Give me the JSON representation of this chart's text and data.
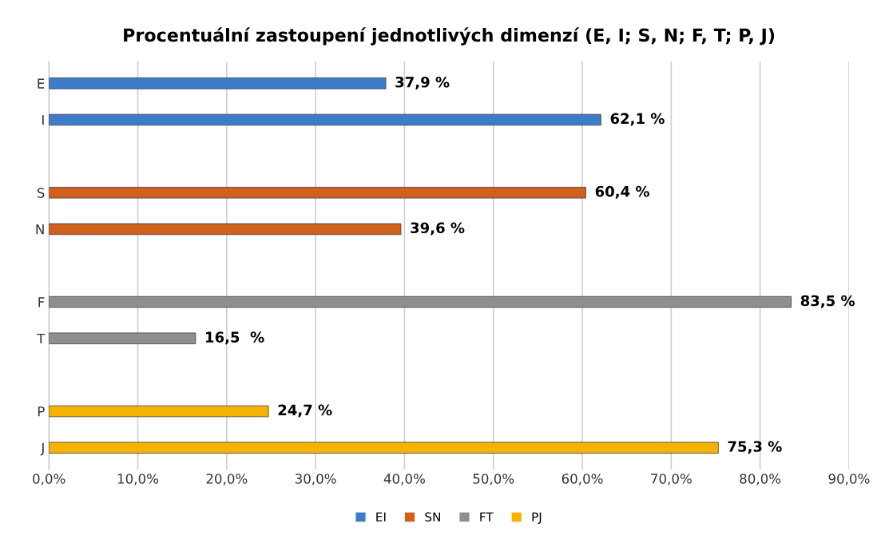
{
  "chart_data": {
    "type": "bar",
    "orientation": "horizontal",
    "title": "Procentuální zastoupení jednotlivých dimenzí (E, I; S, N; F, T; P, J)",
    "categories": [
      "E",
      "I",
      null,
      "S",
      "N",
      null,
      "F",
      "T",
      null,
      "P",
      "J"
    ],
    "series": [
      {
        "name": "EI",
        "color": "#3d7cc9",
        "values": [
          37.9,
          62.1,
          null,
          null,
          null,
          null,
          null,
          null,
          null,
          null,
          null
        ],
        "value_labels": [
          "37,9 %",
          "62,1 %",
          null,
          null,
          null,
          null,
          null,
          null,
          null,
          null,
          null
        ]
      },
      {
        "name": "SN",
        "color": "#d0601c",
        "values": [
          null,
          null,
          null,
          60.4,
          39.6,
          null,
          null,
          null,
          null,
          null,
          null
        ],
        "value_labels": [
          null,
          null,
          null,
          "60,4 %",
          "39,6 %",
          null,
          null,
          null,
          null,
          null,
          null
        ]
      },
      {
        "name": "FT",
        "color": "#8f8f8f",
        "values": [
          null,
          null,
          null,
          null,
          null,
          null,
          83.5,
          16.5,
          null,
          null,
          null
        ],
        "value_labels": [
          null,
          null,
          null,
          null,
          null,
          null,
          "83,5 %",
          "16,5  %",
          null,
          null,
          null
        ]
      },
      {
        "name": "PJ",
        "color": "#f5b300",
        "values": [
          null,
          null,
          null,
          null,
          null,
          null,
          null,
          null,
          null,
          24.7,
          75.3
        ],
        "value_labels": [
          null,
          null,
          null,
          null,
          null,
          null,
          null,
          null,
          null,
          "24,7 %",
          "75,3 %"
        ]
      }
    ],
    "xlim": [
      0,
      90
    ],
    "xticks": [
      {
        "value": 0,
        "label": "0,0%"
      },
      {
        "value": 10,
        "label": "10,0%"
      },
      {
        "value": 20,
        "label": "20,0%"
      },
      {
        "value": 30,
        "label": "30,0%"
      },
      {
        "value": 40,
        "label": "40,0%"
      },
      {
        "value": 50,
        "label": "50,0%"
      },
      {
        "value": 60,
        "label": "60,0%"
      },
      {
        "value": 70,
        "label": "70,0%"
      },
      {
        "value": 80,
        "label": "80,0%"
      },
      {
        "value": 90,
        "label": "90,0%"
      }
    ],
    "grid": "x",
    "legend": "bottom"
  }
}
